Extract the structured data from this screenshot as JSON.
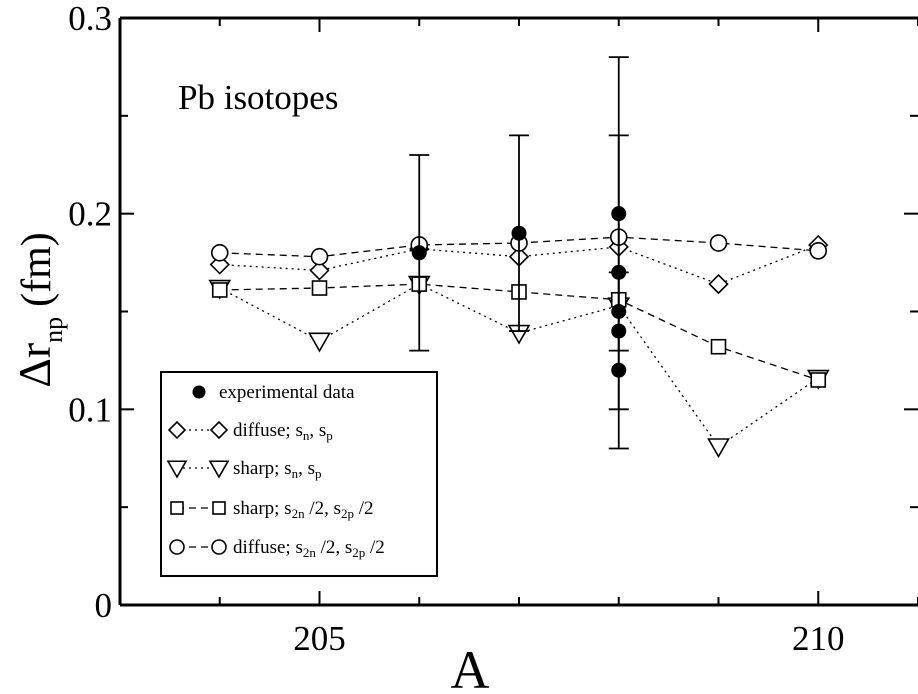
{
  "chart_data": {
    "type": "scatter",
    "title": "",
    "annotation": "Pb isotopes",
    "xlabel": "A",
    "ylabel_main": "Δr",
    "ylabel_sub": "np",
    "ylabel_unit": "(fm)",
    "xlim": [
      203.0,
      211.0
    ],
    "ylim": [
      0.0,
      0.3
    ],
    "x_ticks": [
      205,
      210
    ],
    "x_tick_labels": [
      "205",
      "210"
    ],
    "y_ticks": [
      0,
      0.1,
      0.2,
      0.3
    ],
    "y_tick_labels": [
      "0",
      "0.1",
      "0.2",
      "0.3"
    ],
    "grid": false,
    "legend_position": "bottom-left",
    "experimental": {
      "legend": "experimental data",
      "marker": "filled-circle",
      "points": [
        {
          "x": 206,
          "y": 0.18,
          "err_low": 0.13,
          "err_high": 0.23
        },
        {
          "x": 207,
          "y": 0.19,
          "err_low": 0.14,
          "err_high": 0.24
        },
        {
          "x": 208,
          "y": 0.2,
          "err_low": 0.08,
          "err_high": 0.28
        },
        {
          "x": 208,
          "y": 0.17,
          "err_low": 0.1,
          "err_high": 0.24
        },
        {
          "x": 208,
          "y": 0.15,
          "err_low": 0.13,
          "err_high": 0.17
        },
        {
          "x": 208,
          "y": 0.14
        },
        {
          "x": 208,
          "y": 0.12
        }
      ]
    },
    "series": [
      {
        "legend_main": "diffuse; s",
        "legend_parts": [
          {
            "text": "diffuse; s",
            "sub": false
          },
          {
            "text": "n",
            "sub": true
          },
          {
            "text": ", s",
            "sub": false
          },
          {
            "text": "p",
            "sub": true
          }
        ],
        "marker": "diamond",
        "line": "dotted",
        "x": [
          204,
          205,
          206,
          207,
          208,
          209,
          210
        ],
        "y": [
          0.174,
          0.171,
          0.182,
          0.178,
          0.183,
          0.164,
          0.184
        ]
      },
      {
        "legend_parts": [
          {
            "text": "sharp; s",
            "sub": false
          },
          {
            "text": "n",
            "sub": true
          },
          {
            "text": ", s",
            "sub": false
          },
          {
            "text": "p",
            "sub": true
          }
        ],
        "marker": "triangle-down",
        "line": "dotted",
        "x": [
          204,
          205,
          206,
          207,
          208,
          209,
          210
        ],
        "y": [
          0.162,
          0.135,
          0.164,
          0.139,
          0.153,
          0.081,
          0.116
        ]
      },
      {
        "legend_parts": [
          {
            "text": "sharp; s",
            "sub": false
          },
          {
            "text": "2n",
            "sub": true
          },
          {
            "text": " /2, s",
            "sub": false
          },
          {
            "text": "2p",
            "sub": true
          },
          {
            "text": " /2",
            "sub": false
          }
        ],
        "marker": "square",
        "line": "dashed",
        "x": [
          204,
          205,
          206,
          207,
          208,
          209,
          210
        ],
        "y": [
          0.161,
          0.162,
          0.164,
          0.16,
          0.156,
          0.132,
          0.115
        ]
      },
      {
        "legend_parts": [
          {
            "text": "diffuse; s",
            "sub": false
          },
          {
            "text": "2n",
            "sub": true
          },
          {
            "text": " /2, s",
            "sub": false
          },
          {
            "text": "2p",
            "sub": true
          },
          {
            "text": " /2",
            "sub": false
          }
        ],
        "marker": "circle",
        "line": "dashed",
        "x": [
          204,
          205,
          206,
          207,
          208,
          209,
          210
        ],
        "y": [
          0.18,
          0.178,
          0.184,
          0.185,
          0.188,
          0.185,
          0.181
        ]
      }
    ]
  }
}
